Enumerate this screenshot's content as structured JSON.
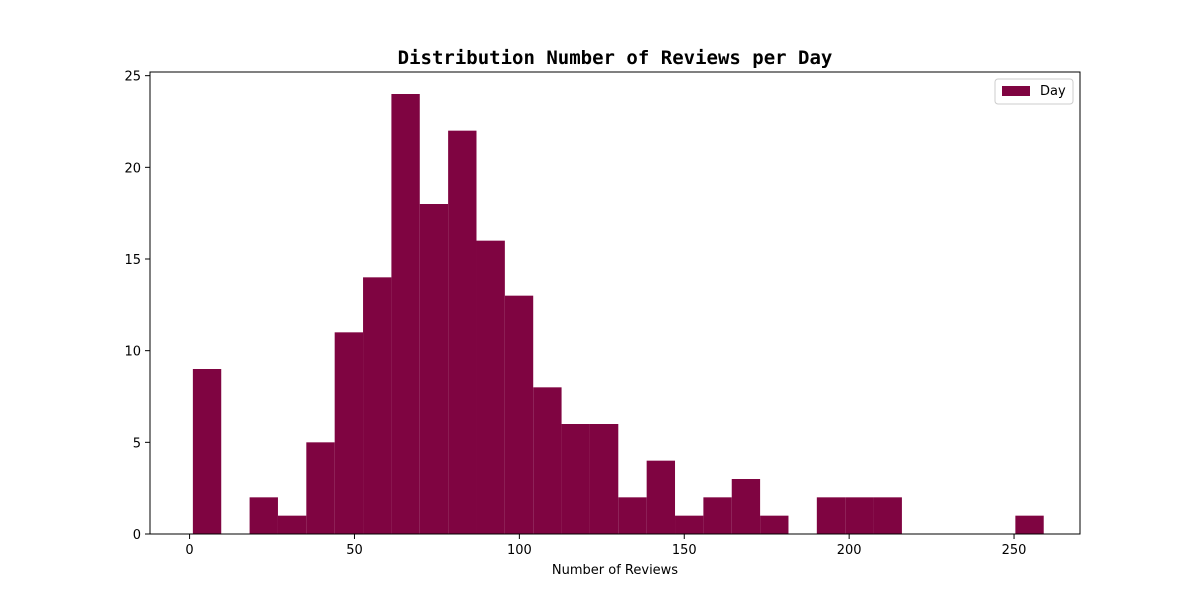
{
  "chart_data": {
    "type": "bar",
    "title": "Distribution Number of Reviews per Day",
    "xlabel": "Number of Reviews",
    "ylabel": "",
    "xlim": [
      -12,
      270
    ],
    "ylim": [
      0,
      25.2
    ],
    "xticks": [
      0,
      50,
      100,
      150,
      200,
      250
    ],
    "yticks": [
      0,
      5,
      10,
      15,
      20,
      25
    ],
    "grid": false,
    "legend_position": "top-right",
    "series": [
      {
        "name": "Day",
        "color": "#7f0441",
        "bins": [
          {
            "x0": 1,
            "x1": 9.6,
            "count": 9
          },
          {
            "x0": 9.6,
            "x1": 18.2,
            "count": 0
          },
          {
            "x0": 18.2,
            "x1": 26.8,
            "count": 2
          },
          {
            "x0": 26.8,
            "x1": 35.4,
            "count": 1
          },
          {
            "x0": 35.4,
            "x1": 44,
            "count": 5
          },
          {
            "x0": 44,
            "x1": 52.6,
            "count": 11
          },
          {
            "x0": 52.6,
            "x1": 61.2,
            "count": 14
          },
          {
            "x0": 61.2,
            "x1": 69.8,
            "count": 24
          },
          {
            "x0": 69.8,
            "x1": 78.4,
            "count": 18
          },
          {
            "x0": 78.4,
            "x1": 87,
            "count": 22
          },
          {
            "x0": 87,
            "x1": 95.6,
            "count": 16
          },
          {
            "x0": 95.6,
            "x1": 104.2,
            "count": 13
          },
          {
            "x0": 104.2,
            "x1": 112.8,
            "count": 8
          },
          {
            "x0": 112.8,
            "x1": 121.4,
            "count": 6
          },
          {
            "x0": 121.4,
            "x1": 130,
            "count": 6
          },
          {
            "x0": 130,
            "x1": 138.6,
            "count": 2
          },
          {
            "x0": 138.6,
            "x1": 147.2,
            "count": 4
          },
          {
            "x0": 147.2,
            "x1": 155.8,
            "count": 1
          },
          {
            "x0": 155.8,
            "x1": 164.4,
            "count": 2
          },
          {
            "x0": 164.4,
            "x1": 173,
            "count": 3
          },
          {
            "x0": 173,
            "x1": 181.6,
            "count": 1
          },
          {
            "x0": 181.6,
            "x1": 190.2,
            "count": 0
          },
          {
            "x0": 190.2,
            "x1": 198.8,
            "count": 2
          },
          {
            "x0": 198.8,
            "x1": 207.4,
            "count": 2
          },
          {
            "x0": 207.4,
            "x1": 216,
            "count": 2
          },
          {
            "x0": 216,
            "x1": 224.6,
            "count": 0
          },
          {
            "x0": 224.6,
            "x1": 233.2,
            "count": 0
          },
          {
            "x0": 233.2,
            "x1": 241.8,
            "count": 0
          },
          {
            "x0": 241.8,
            "x1": 250.4,
            "count": 0
          },
          {
            "x0": 250.4,
            "x1": 259,
            "count": 1
          }
        ]
      }
    ]
  }
}
